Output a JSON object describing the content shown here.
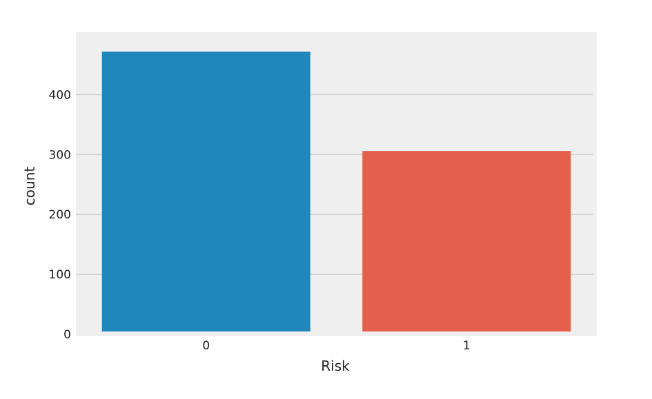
{
  "chart_data": {
    "type": "bar",
    "title": "",
    "xlabel": "Risk",
    "ylabel": "count",
    "categories": [
      "0",
      "1"
    ],
    "values": [
      472,
      306
    ],
    "ylim": [
      0,
      496
    ],
    "yticks": [
      0,
      100,
      200,
      300,
      400
    ],
    "ytick_labels": [
      "0",
      "100",
      "200",
      "300",
      "400"
    ],
    "grid": "horizontal",
    "colors": {
      "bars": [
        "#1f87bb",
        "#e4604a"
      ],
      "plot_background": "#efefef",
      "grid": "#cfcfcf"
    }
  }
}
